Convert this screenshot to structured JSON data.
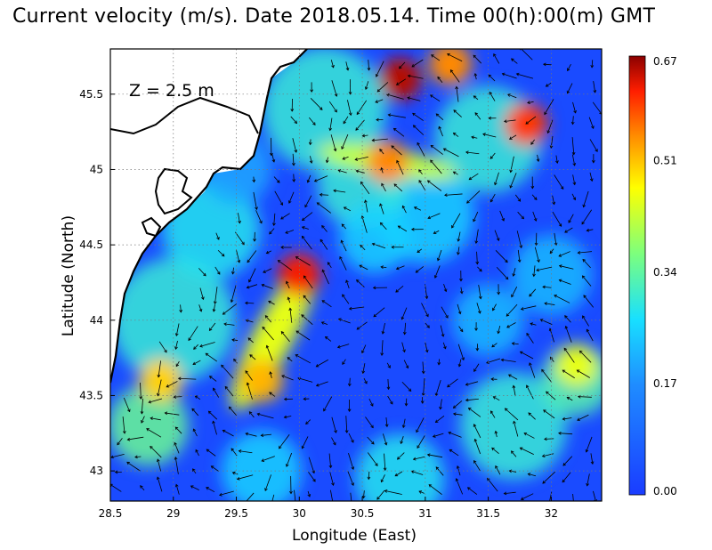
{
  "title": "Current velocity (m/s). Date 2018.05.14. Time 00(h):00(m) GMT",
  "depth_label": "Z = 2.5 m",
  "axes": {
    "xlabel": "Longitude (East)",
    "ylabel": "Latitude (North)",
    "xticks": [
      "28.5",
      "29",
      "29.5",
      "30",
      "30.5",
      "31",
      "31.5",
      "32"
    ],
    "yticks": [
      "43",
      "43.5",
      "44",
      "44.5",
      "45",
      "45.5"
    ],
    "xrange": [
      28.5,
      32.4
    ],
    "yrange": [
      42.8,
      45.8
    ]
  },
  "colorbar": {
    "ticks": [
      "0.67",
      "0.51",
      "0.34",
      "0.17",
      "0.00"
    ],
    "range": [
      0.0,
      0.67
    ]
  },
  "colors": {
    "low": "#1f4fff",
    "mid": "#18e0ff",
    "high": "#ff2200",
    "max": "#8b0000",
    "land": "#ffffff",
    "coast": "#000000"
  },
  "chart_data": {
    "type": "heatmap",
    "title": "Current velocity (m/s). Date 2018.05.14. Time 00(h):00(m) GMT",
    "xlabel": "Longitude (East)",
    "ylabel": "Latitude (North)",
    "xlim": [
      28.5,
      32.4
    ],
    "ylim": [
      42.8,
      45.8
    ],
    "value_range": [
      0.0,
      0.67
    ],
    "units": "m/s",
    "hotspots": [
      {
        "lon": 30.0,
        "lat": 44.3,
        "value": 0.62
      },
      {
        "lon": 30.8,
        "lat": 45.6,
        "value": 0.65
      },
      {
        "lon": 31.8,
        "lat": 45.3,
        "value": 0.6
      },
      {
        "lon": 30.7,
        "lat": 45.05,
        "value": 0.55
      },
      {
        "lon": 29.7,
        "lat": 43.6,
        "value": 0.52
      },
      {
        "lon": 31.2,
        "lat": 45.7,
        "value": 0.55
      },
      {
        "lon": 28.9,
        "lat": 43.6,
        "value": 0.5
      },
      {
        "lon": 32.2,
        "lat": 43.7,
        "value": 0.45
      }
    ]
  }
}
